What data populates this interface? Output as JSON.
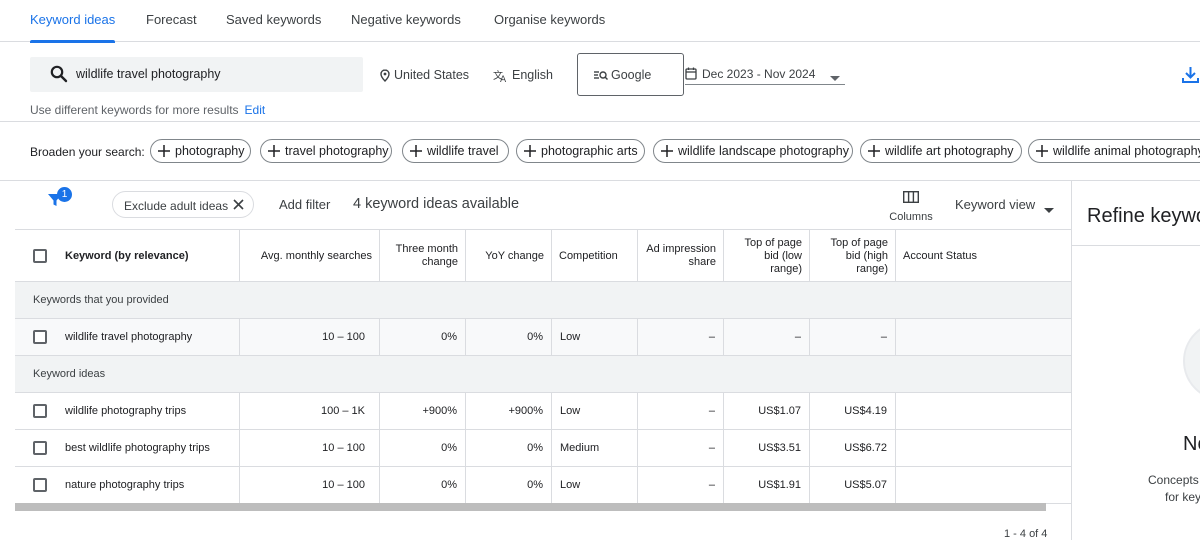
{
  "tabs": [
    {
      "label": "Keyword ideas",
      "active": true
    },
    {
      "label": "Forecast"
    },
    {
      "label": "Saved keywords"
    },
    {
      "label": "Negative keywords"
    },
    {
      "label": "Organise keywords"
    }
  ],
  "search": {
    "value": "wildlife travel photography",
    "location": "United States",
    "language": "English",
    "network": "Google",
    "date_range": "Dec 2023 - Nov 2024",
    "hint": "Use different keywords for more results",
    "edit_label": "Edit"
  },
  "broaden": {
    "label": "Broaden your search:",
    "chips": [
      "photography",
      "travel photography",
      "wildlife travel",
      "photographic arts",
      "wildlife landscape photography",
      "wildlife art photography",
      "wildlife animal photography"
    ]
  },
  "toolbar": {
    "filter_badge": "1",
    "exclude_chip": "Exclude adult ideas",
    "add_filter": "Add filter",
    "ideas_count": "4 keyword ideas available",
    "columns_label": "Columns",
    "view_label": "Keyword view"
  },
  "table": {
    "headers": {
      "keyword": "Keyword (by relevance)",
      "avg_searches": "Avg. monthly searches",
      "three_month": "Three month change",
      "yoy": "YoY change",
      "competition": "Competition",
      "ad_impression": "Ad impression share",
      "bid_low": "Top of page bid (low range)",
      "bid_high": "Top of page bid (high range)",
      "account_status": "Account Status"
    },
    "group_provided": "Keywords that you provided",
    "provided_rows": [
      {
        "keyword": "wildlife travel photography",
        "avg": "10 – 100",
        "three": "0%",
        "yoy": "0%",
        "comp": "Low",
        "ad": "–",
        "low": "–",
        "high": "–"
      }
    ],
    "group_ideas": "Keyword ideas",
    "idea_rows": [
      {
        "keyword": "wildlife photography trips",
        "avg": "100 – 1K",
        "three": "+900%",
        "yoy": "+900%",
        "comp": "Low",
        "ad": "–",
        "low": "US$1.07",
        "high": "US$4.19"
      },
      {
        "keyword": "best wildlife photography trips",
        "avg": "10 – 100",
        "three": "0%",
        "yoy": "0%",
        "comp": "Medium",
        "ad": "–",
        "low": "US$3.51",
        "high": "US$6.72"
      },
      {
        "keyword": "nature photography trips",
        "avg": "10 – 100",
        "three": "0%",
        "yoy": "0%",
        "comp": "Low",
        "ad": "–",
        "low": "US$1.91",
        "high": "US$5.07"
      }
    ],
    "pager": "1 - 4 of 4"
  },
  "right_panel": {
    "title": "Refine keywo",
    "heading": "No",
    "text1": "Concepts",
    "text2": "for key"
  },
  "colors": {
    "accent": "#1a73e8",
    "border": "#dadce0",
    "group_bg": "#f1f3f4"
  }
}
